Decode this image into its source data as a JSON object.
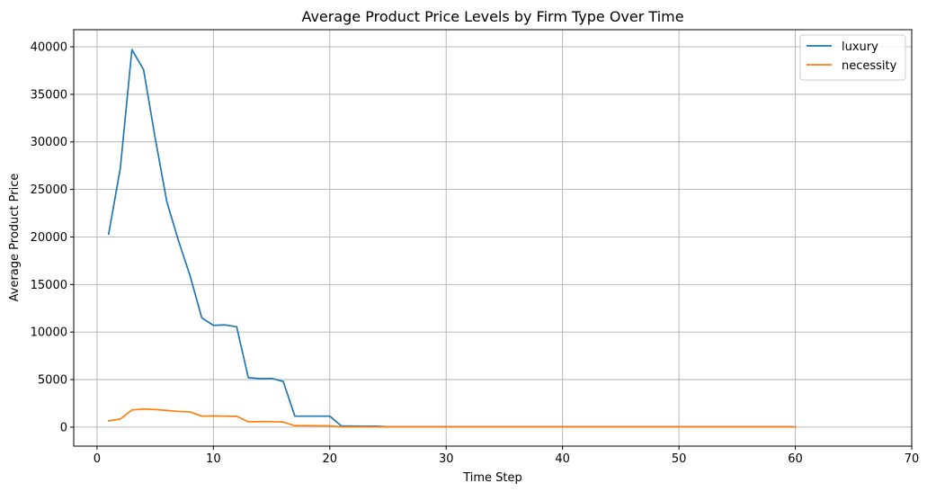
{
  "chart_data": {
    "type": "line",
    "title": "Average Product Price Levels by Firm Type Over Time",
    "xlabel": "Time Step",
    "ylabel": "Average Product Price",
    "xlim": [
      -2,
      70
    ],
    "ylim": [
      -2000,
      41800
    ],
    "xticks": [
      0,
      10,
      20,
      30,
      40,
      50,
      60,
      70
    ],
    "yticks": [
      0,
      5000,
      10000,
      15000,
      20000,
      25000,
      30000,
      35000,
      40000
    ],
    "grid": true,
    "legend_position": "top-right",
    "x": [
      1,
      2,
      3,
      4,
      5,
      6,
      7,
      8,
      9,
      10,
      11,
      12,
      13,
      14,
      15,
      16,
      17,
      18,
      19,
      20,
      21,
      22,
      23,
      24,
      25,
      26,
      27,
      28,
      29,
      30,
      31,
      32,
      33,
      34,
      35,
      36,
      37,
      38,
      39,
      40,
      41,
      42,
      43,
      44,
      45,
      46,
      47,
      48,
      49,
      50,
      51,
      52,
      53,
      54,
      55,
      56,
      57,
      58,
      59,
      60
    ],
    "series": [
      {
        "name": "luxury",
        "color": "#1f77b4",
        "values": [
          20300,
          27200,
          39700,
          37600,
          30400,
          23700,
          19600,
          15900,
          11500,
          10700,
          10750,
          10550,
          5200,
          5100,
          5120,
          4800,
          1150,
          1150,
          1150,
          1150,
          120,
          110,
          100,
          90,
          40,
          40,
          40,
          40,
          40,
          40,
          40,
          40,
          40,
          40,
          40,
          40,
          40,
          40,
          40,
          40,
          40,
          40,
          40,
          40,
          40,
          40,
          40,
          40,
          40,
          40,
          40,
          40,
          40,
          40,
          40,
          40,
          40,
          40,
          40,
          40
        ]
      },
      {
        "name": "necessity",
        "color": "#ff7f0e",
        "values": [
          650,
          850,
          1800,
          1900,
          1850,
          1750,
          1650,
          1600,
          1150,
          1180,
          1150,
          1130,
          560,
          580,
          570,
          540,
          150,
          150,
          140,
          130,
          30,
          30,
          30,
          30,
          25,
          25,
          25,
          25,
          25,
          25,
          25,
          25,
          25,
          25,
          25,
          25,
          25,
          25,
          25,
          25,
          25,
          25,
          25,
          25,
          25,
          25,
          25,
          25,
          25,
          25,
          25,
          25,
          25,
          25,
          25,
          25,
          25,
          25,
          25,
          25
        ]
      }
    ]
  }
}
